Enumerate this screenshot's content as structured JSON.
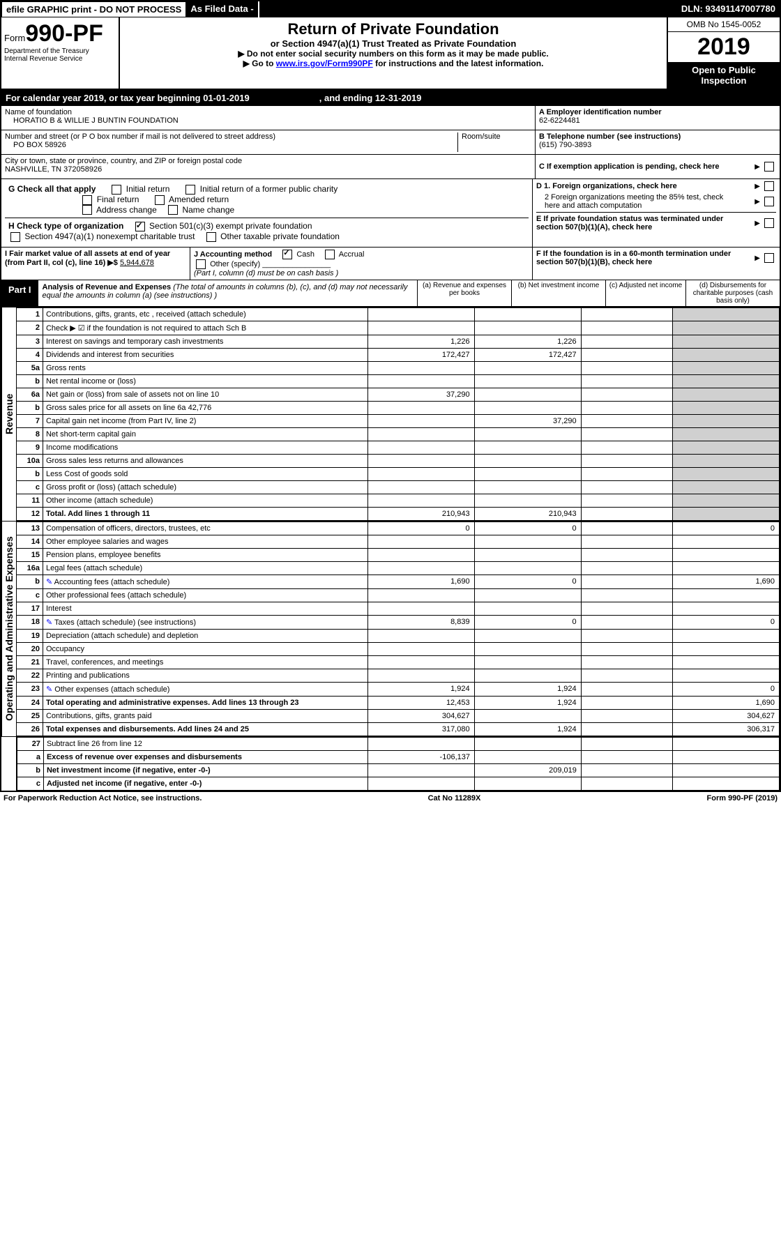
{
  "topbar": {
    "efile": "efile GRAPHIC print - DO NOT PROCESS",
    "asfiled": "As Filed Data -",
    "dln_label": "DLN:",
    "dln": "93491147007780"
  },
  "header": {
    "form_prefix": "Form",
    "form_number": "990-PF",
    "dept": "Department of the Treasury",
    "irs": "Internal Revenue Service",
    "title": "Return of Private Foundation",
    "subtitle": "or Section 4947(a)(1) Trust Treated as Private Foundation",
    "inst1": "▶ Do not enter social security numbers on this form as it may be made public.",
    "inst2_pre": "▶ Go to ",
    "inst2_link": "www.irs.gov/Form990PF",
    "inst2_post": " for instructions and the latest information.",
    "omb": "OMB No 1545-0052",
    "year": "2019",
    "open": "Open to Public Inspection"
  },
  "calendar": {
    "text": "For calendar year 2019, or tax year beginning 01-01-2019",
    "ending": ", and ending 12-31-2019"
  },
  "name_block": {
    "label": "Name of foundation",
    "name": "HORATIO B & WILLIE J BUNTIN FOUNDATION",
    "street_label": "Number and street (or P O  box number if mail is not delivered to street address)",
    "street": "PO BOX 58926",
    "room_label": "Room/suite",
    "city_label": "City or town, state or province, country, and ZIP or foreign postal code",
    "city": "NASHVILLE, TN  372058926"
  },
  "right_block": {
    "a_label": "A Employer identification number",
    "ein": "62-6224481",
    "b_label": "B Telephone number (see instructions)",
    "phone": "(615) 790-3893",
    "c_label": "C If exemption application is pending, check here",
    "d1": "D 1. Foreign organizations, check here",
    "d2": "2 Foreign organizations meeting the 85% test, check here and attach computation",
    "e": "E  If private foundation status was terminated under section 507(b)(1)(A), check here",
    "f": "F  If the foundation is in a 60-month termination under section 507(b)(1)(B), check here"
  },
  "g_row": {
    "label": "G Check all that apply",
    "opts": [
      "Initial return",
      "Initial return of a former public charity",
      "Final return",
      "Amended return",
      "Address change",
      "Name change"
    ]
  },
  "h_row": {
    "label": "H Check type of organization",
    "opt1": "Section 501(c)(3) exempt private foundation",
    "opt2": "Section 4947(a)(1) nonexempt charitable trust",
    "opt3": "Other taxable private foundation"
  },
  "i_row": {
    "label": "I Fair market value of all assets at end of year (from Part II, col  (c), line 16) ▶$",
    "value": "5,944,678"
  },
  "j_row": {
    "label": "J Accounting method",
    "cash": "Cash",
    "accrual": "Accrual",
    "other": "Other (specify)",
    "note": "(Part I, column (d) must be on cash basis )"
  },
  "part1": {
    "label": "Part I",
    "title": "Analysis of Revenue and Expenses",
    "title_note": "(The total of amounts in columns (b), (c), and (d) may not necessarily equal the amounts in column (a) (see instructions) )",
    "cols": {
      "a": "(a) Revenue and expenses per books",
      "b": "(b) Net investment income",
      "c": "(c) Adjusted net income",
      "d": "(d) Disbursements for charitable purposes (cash basis only)"
    }
  },
  "side_labels": {
    "revenue": "Revenue",
    "expenses": "Operating and Administrative Expenses"
  },
  "rows": [
    {
      "n": "1",
      "desc": "Contributions, gifts, grants, etc , received (attach schedule)"
    },
    {
      "n": "2",
      "desc": "Check ▶ ☑ if the foundation is not required to attach Sch B"
    },
    {
      "n": "3",
      "desc": "Interest on savings and temporary cash investments",
      "a": "1,226",
      "b": "1,226"
    },
    {
      "n": "4",
      "desc": "Dividends and interest from securities",
      "a": "172,427",
      "b": "172,427"
    },
    {
      "n": "5a",
      "desc": "Gross rents"
    },
    {
      "n": "b",
      "desc": "Net rental income or (loss)"
    },
    {
      "n": "6a",
      "desc": "Net gain or (loss) from sale of assets not on line 10",
      "a": "37,290"
    },
    {
      "n": "b",
      "desc": "Gross sales price for all assets on line 6a               42,776"
    },
    {
      "n": "7",
      "desc": "Capital gain net income (from Part IV, line 2)",
      "b": "37,290"
    },
    {
      "n": "8",
      "desc": "Net short-term capital gain"
    },
    {
      "n": "9",
      "desc": "Income modifications"
    },
    {
      "n": "10a",
      "desc": "Gross sales less returns and allowances"
    },
    {
      "n": "b",
      "desc": "Less  Cost of goods sold"
    },
    {
      "n": "c",
      "desc": "Gross profit or (loss) (attach schedule)"
    },
    {
      "n": "11",
      "desc": "Other income (attach schedule)"
    },
    {
      "n": "12",
      "desc": "Total. Add lines 1 through 11",
      "bold": true,
      "a": "210,943",
      "b": "210,943"
    }
  ],
  "exp_rows": [
    {
      "n": "13",
      "desc": "Compensation of officers, directors, trustees, etc",
      "a": "0",
      "b": "0",
      "d": "0"
    },
    {
      "n": "14",
      "desc": "Other employee salaries and wages"
    },
    {
      "n": "15",
      "desc": "Pension plans, employee benefits"
    },
    {
      "n": "16a",
      "desc": "Legal fees (attach schedule)"
    },
    {
      "n": "b",
      "desc": "Accounting fees (attach schedule)",
      "icon": true,
      "a": "1,690",
      "b": "0",
      "d": "1,690"
    },
    {
      "n": "c",
      "desc": "Other professional fees (attach schedule)"
    },
    {
      "n": "17",
      "desc": "Interest"
    },
    {
      "n": "18",
      "desc": "Taxes (attach schedule) (see instructions)",
      "icon": true,
      "a": "8,839",
      "b": "0",
      "d": "0"
    },
    {
      "n": "19",
      "desc": "Depreciation (attach schedule) and depletion"
    },
    {
      "n": "20",
      "desc": "Occupancy"
    },
    {
      "n": "21",
      "desc": "Travel, conferences, and meetings"
    },
    {
      "n": "22",
      "desc": "Printing and publications"
    },
    {
      "n": "23",
      "desc": "Other expenses (attach schedule)",
      "icon": true,
      "a": "1,924",
      "b": "1,924",
      "d": "0"
    },
    {
      "n": "24",
      "desc": "Total operating and administrative expenses. Add lines 13 through 23",
      "bold": true,
      "a": "12,453",
      "b": "1,924",
      "d": "1,690"
    },
    {
      "n": "25",
      "desc": "Contributions, gifts, grants paid",
      "a": "304,627",
      "d": "304,627"
    },
    {
      "n": "26",
      "desc": "Total expenses and disbursements. Add lines 24 and 25",
      "bold": true,
      "a": "317,080",
      "b": "1,924",
      "d": "306,317"
    }
  ],
  "final_rows": [
    {
      "n": "27",
      "desc": "Subtract line 26 from line 12"
    },
    {
      "n": "a",
      "desc": "Excess of revenue over expenses and disbursements",
      "bold": true,
      "a": "-106,137"
    },
    {
      "n": "b",
      "desc": "Net investment income (if negative, enter -0-)",
      "bold": true,
      "b": "209,019"
    },
    {
      "n": "c",
      "desc": "Adjusted net income (if negative, enter -0-)",
      "bold": true
    }
  ],
  "footer": {
    "left": "For Paperwork Reduction Act Notice, see instructions.",
    "center": "Cat No  11289X",
    "right": "Form 990-PF (2019)"
  }
}
